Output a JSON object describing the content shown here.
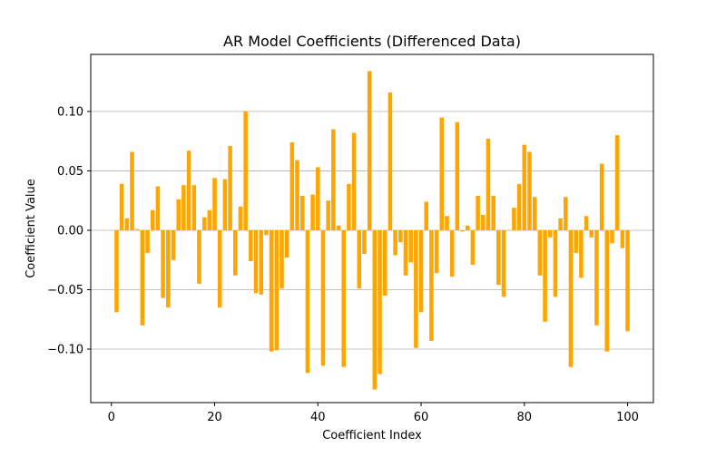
{
  "chart_data": {
    "type": "bar",
    "title": "AR Model Coefficients (Differenced Data)",
    "xlabel": "Coefficient Index",
    "ylabel": "Coefficient Value",
    "xlim": [
      -4,
      105
    ],
    "ylim": [
      -0.145,
      0.148
    ],
    "xticks": [
      0,
      20,
      40,
      60,
      80,
      100
    ],
    "xtick_labels": [
      "0",
      "20",
      "40",
      "60",
      "80",
      "100"
    ],
    "yticks": [
      -0.1,
      -0.05,
      0.0,
      0.05,
      0.1
    ],
    "ytick_labels": [
      "−0.10",
      "−0.05",
      "0.00",
      "0.05",
      "0.10"
    ],
    "grid": "y-axis",
    "bar_color": "#FFA500",
    "grid_color": "#b0b0b0",
    "x": [
      1,
      2,
      3,
      4,
      5,
      6,
      7,
      8,
      9,
      10,
      11,
      12,
      13,
      14,
      15,
      16,
      17,
      18,
      19,
      20,
      21,
      22,
      23,
      24,
      25,
      26,
      27,
      28,
      29,
      30,
      31,
      32,
      33,
      34,
      35,
      36,
      37,
      38,
      39,
      40,
      41,
      42,
      43,
      44,
      45,
      46,
      47,
      48,
      49,
      50,
      51,
      52,
      53,
      54,
      55,
      56,
      57,
      58,
      59,
      60,
      61,
      62,
      63,
      64,
      65,
      66,
      67,
      68,
      69,
      70,
      71,
      72,
      73,
      74,
      75,
      76,
      77,
      78,
      79,
      80,
      81,
      82,
      83,
      84,
      85,
      86,
      87,
      88,
      89,
      90,
      91,
      92,
      93,
      94,
      95,
      96,
      97,
      98,
      99,
      100
    ],
    "values": [
      -0.069,
      0.039,
      0.01,
      0.066,
      0.001,
      -0.08,
      -0.019,
      0.017,
      0.037,
      -0.057,
      -0.065,
      -0.025,
      0.026,
      0.038,
      0.067,
      0.038,
      -0.045,
      0.011,
      0.017,
      0.044,
      -0.065,
      0.043,
      0.071,
      -0.038,
      0.02,
      0.1,
      -0.026,
      -0.053,
      -0.054,
      -0.004,
      -0.102,
      -0.101,
      -0.049,
      -0.023,
      0.074,
      0.059,
      0.029,
      -0.12,
      0.03,
      0.053,
      -0.114,
      0.025,
      0.085,
      0.004,
      -0.115,
      0.039,
      0.082,
      -0.049,
      -0.02,
      0.134,
      -0.134,
      -0.121,
      -0.055,
      0.116,
      -0.021,
      -0.01,
      -0.038,
      -0.027,
      -0.099,
      -0.069,
      0.024,
      -0.093,
      -0.036,
      0.095,
      0.012,
      -0.039,
      0.091,
      -0.001,
      0.004,
      -0.029,
      0.029,
      0.013,
      0.077,
      0.029,
      -0.046,
      -0.056,
      0.0,
      0.019,
      0.039,
      0.072,
      0.066,
      0.028,
      -0.038,
      -0.077,
      -0.006,
      -0.056,
      0.01,
      0.028,
      -0.115,
      -0.019,
      -0.04,
      0.012,
      -0.006,
      -0.08,
      0.056,
      -0.102,
      -0.011,
      0.08,
      -0.015,
      -0.085
    ]
  }
}
